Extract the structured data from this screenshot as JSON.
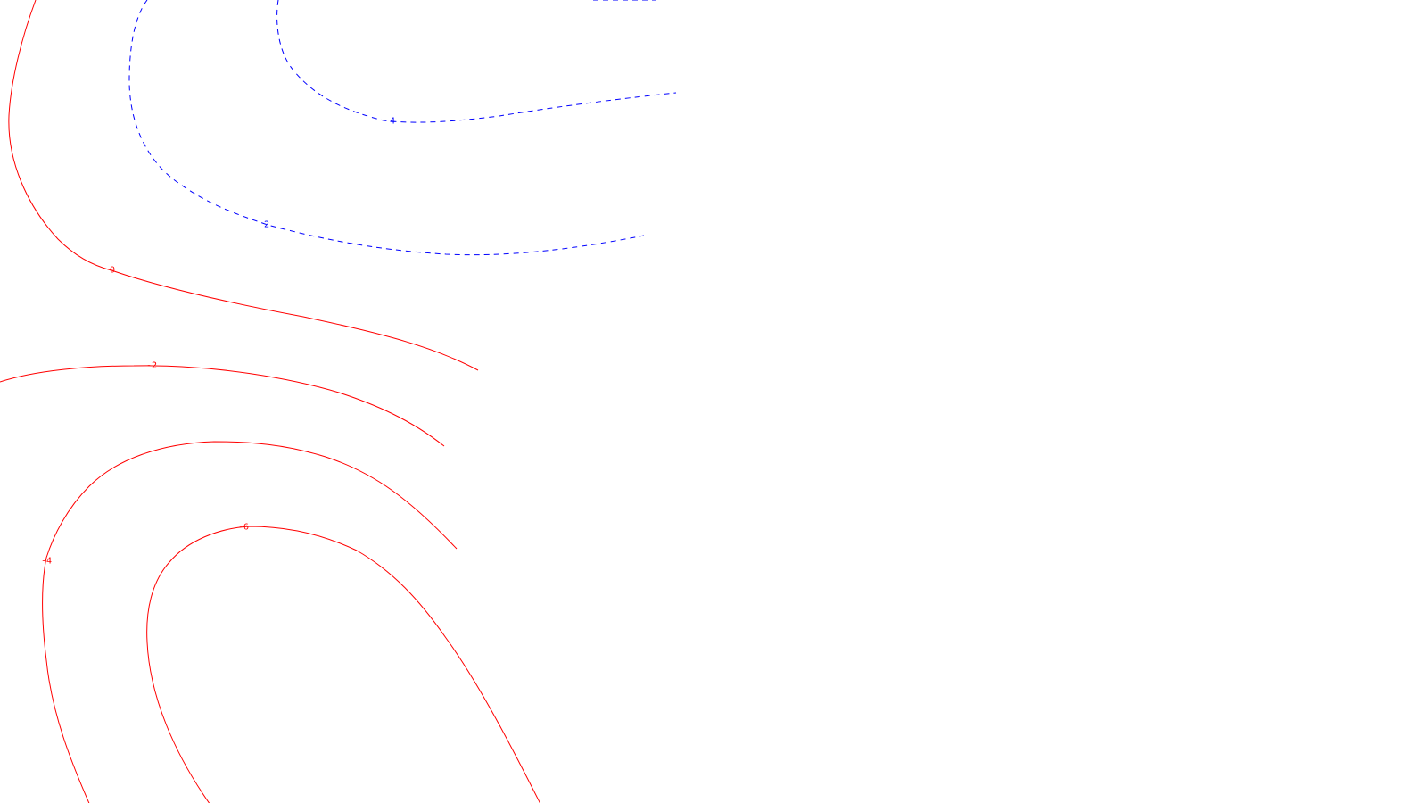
{
  "map": {
    "colors": {
      "positive": "#0000ff",
      "negative": "#ff0000",
      "background": "#ffffff"
    },
    "contours": [
      {
        "id": "pos-4",
        "value": "4",
        "sign": "positive",
        "style": "dashed"
      },
      {
        "id": "pos-2",
        "value": "2",
        "sign": "positive",
        "style": "dashed"
      },
      {
        "id": "zero",
        "value": "0",
        "sign": "negative",
        "style": "solid"
      },
      {
        "id": "neg-2",
        "value": "-2",
        "sign": "negative",
        "style": "solid"
      },
      {
        "id": "neg-4",
        "value": "-4",
        "sign": "negative",
        "style": "solid"
      },
      {
        "id": "neg-6",
        "value": "-6",
        "sign": "negative",
        "style": "solid"
      }
    ]
  }
}
